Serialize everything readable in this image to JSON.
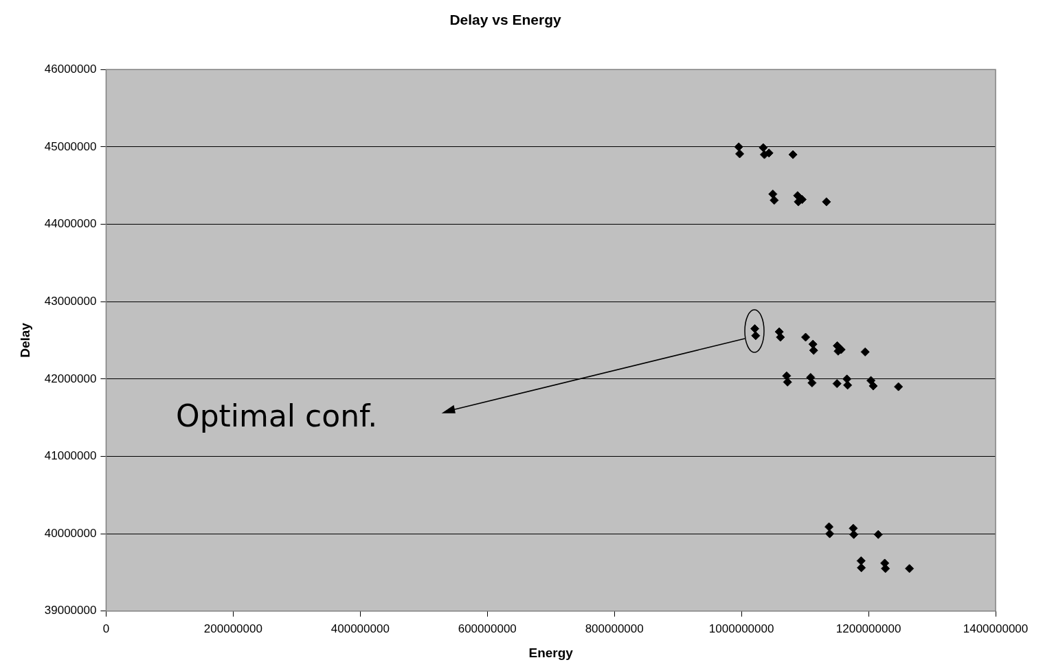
{
  "chart_data": {
    "type": "scatter",
    "title": "Delay vs Energy",
    "xlabel": "Energy",
    "ylabel": "Delay",
    "x": [
      995700000,
      997200000,
      1034300000,
      1036100000,
      1043300000,
      1081100000,
      1049400000,
      1051600000,
      1088400000,
      1089500000,
      1095600000,
      1133800000,
      1021000000,
      1022400000,
      1059500000,
      1061300000,
      1101000000,
      1112500000,
      1113600000,
      1150800000,
      1152200000,
      1156900000,
      1194700000,
      1071100000,
      1072500000,
      1108900000,
      1111100000,
      1150400000,
      1166000000,
      1167100000,
      1203800000,
      1207400000,
      1247100000,
      1137800000,
      1138900000,
      1176000000,
      1176800000,
      1215300000,
      1188300000,
      1188700000,
      1225500000,
      1226600000,
      1264400000
    ],
    "series": [
      {
        "color": "#000000",
        "values": [
          45000000,
          44910000,
          44990000,
          44900000,
          44920000,
          44900000,
          44390000,
          44310000,
          44370000,
          44290000,
          44320000,
          44290000,
          42650000,
          42560000,
          42610000,
          42540000,
          42540000,
          42450000,
          42370000,
          42430000,
          42360000,
          42380000,
          42350000,
          42040000,
          41960000,
          42020000,
          41950000,
          41940000,
          42000000,
          41920000,
          41980000,
          41910000,
          41900000,
          40090000,
          40000000,
          40070000,
          39990000,
          39990000,
          39650000,
          39560000,
          39620000,
          39550000,
          39550000
        ]
      }
    ],
    "xlim": [
      0,
      1400000000
    ],
    "xticks": [
      0,
      200000000,
      400000000,
      600000000,
      800000000,
      1000000000,
      1200000000,
      1400000000
    ],
    "ylim": [
      39000000,
      46000000
    ],
    "yticks": [
      39000000,
      40000000,
      41000000,
      42000000,
      43000000,
      44000000,
      45000000,
      46000000
    ],
    "grid": "y",
    "legend": false,
    "marker": "diamond",
    "annotations": [
      "Optimal conf."
    ]
  }
}
